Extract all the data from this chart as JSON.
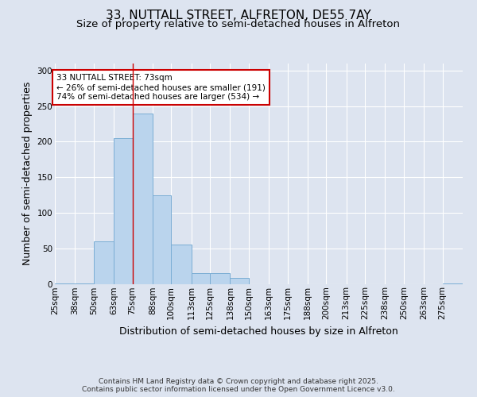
{
  "title_line1": "33, NUTTALL STREET, ALFRETON, DE55 7AY",
  "title_line2": "Size of property relative to semi-detached houses in Alfreton",
  "xlabel": "Distribution of semi-detached houses by size in Alfreton",
  "ylabel": "Number of semi-detached properties",
  "bin_labels": [
    "25sqm",
    "38sqm",
    "50sqm",
    "63sqm",
    "75sqm",
    "88sqm",
    "100sqm",
    "113sqm",
    "125sqm",
    "138sqm",
    "150sqm",
    "163sqm",
    "175sqm",
    "188sqm",
    "200sqm",
    "213sqm",
    "225sqm",
    "238sqm",
    "250sqm",
    "263sqm",
    "275sqm"
  ],
  "bar_values": [
    1,
    1,
    60,
    205,
    240,
    125,
    55,
    15,
    15,
    8,
    0,
    0,
    0,
    0,
    0,
    0,
    0,
    0,
    0,
    0,
    1
  ],
  "bar_color": "#bad4ed",
  "bar_edge_color": "#7aadd4",
  "property_line_x": 75,
  "bin_edges": [
    25,
    38,
    50,
    63,
    75,
    88,
    100,
    113,
    125,
    138,
    150,
    163,
    175,
    188,
    200,
    213,
    225,
    238,
    250,
    263,
    275,
    288
  ],
  "annotation_text": "33 NUTTALL STREET: 73sqm\n← 26% of semi-detached houses are smaller (191)\n74% of semi-detached houses are larger (534) →",
  "annotation_box_color": "#ffffff",
  "annotation_box_edge": "#cc0000",
  "vline_color": "#cc0000",
  "ylim": [
    0,
    310
  ],
  "yticks": [
    0,
    50,
    100,
    150,
    200,
    250,
    300
  ],
  "background_color": "#dde4f0",
  "plot_bg_color": "#dde4f0",
  "footer_text": "Contains HM Land Registry data © Crown copyright and database right 2025.\nContains public sector information licensed under the Open Government Licence v3.0.",
  "title_fontsize": 11,
  "subtitle_fontsize": 9.5,
  "axis_label_fontsize": 9,
  "tick_fontsize": 7.5,
  "annotation_fontsize": 7.5,
  "footer_fontsize": 6.5
}
